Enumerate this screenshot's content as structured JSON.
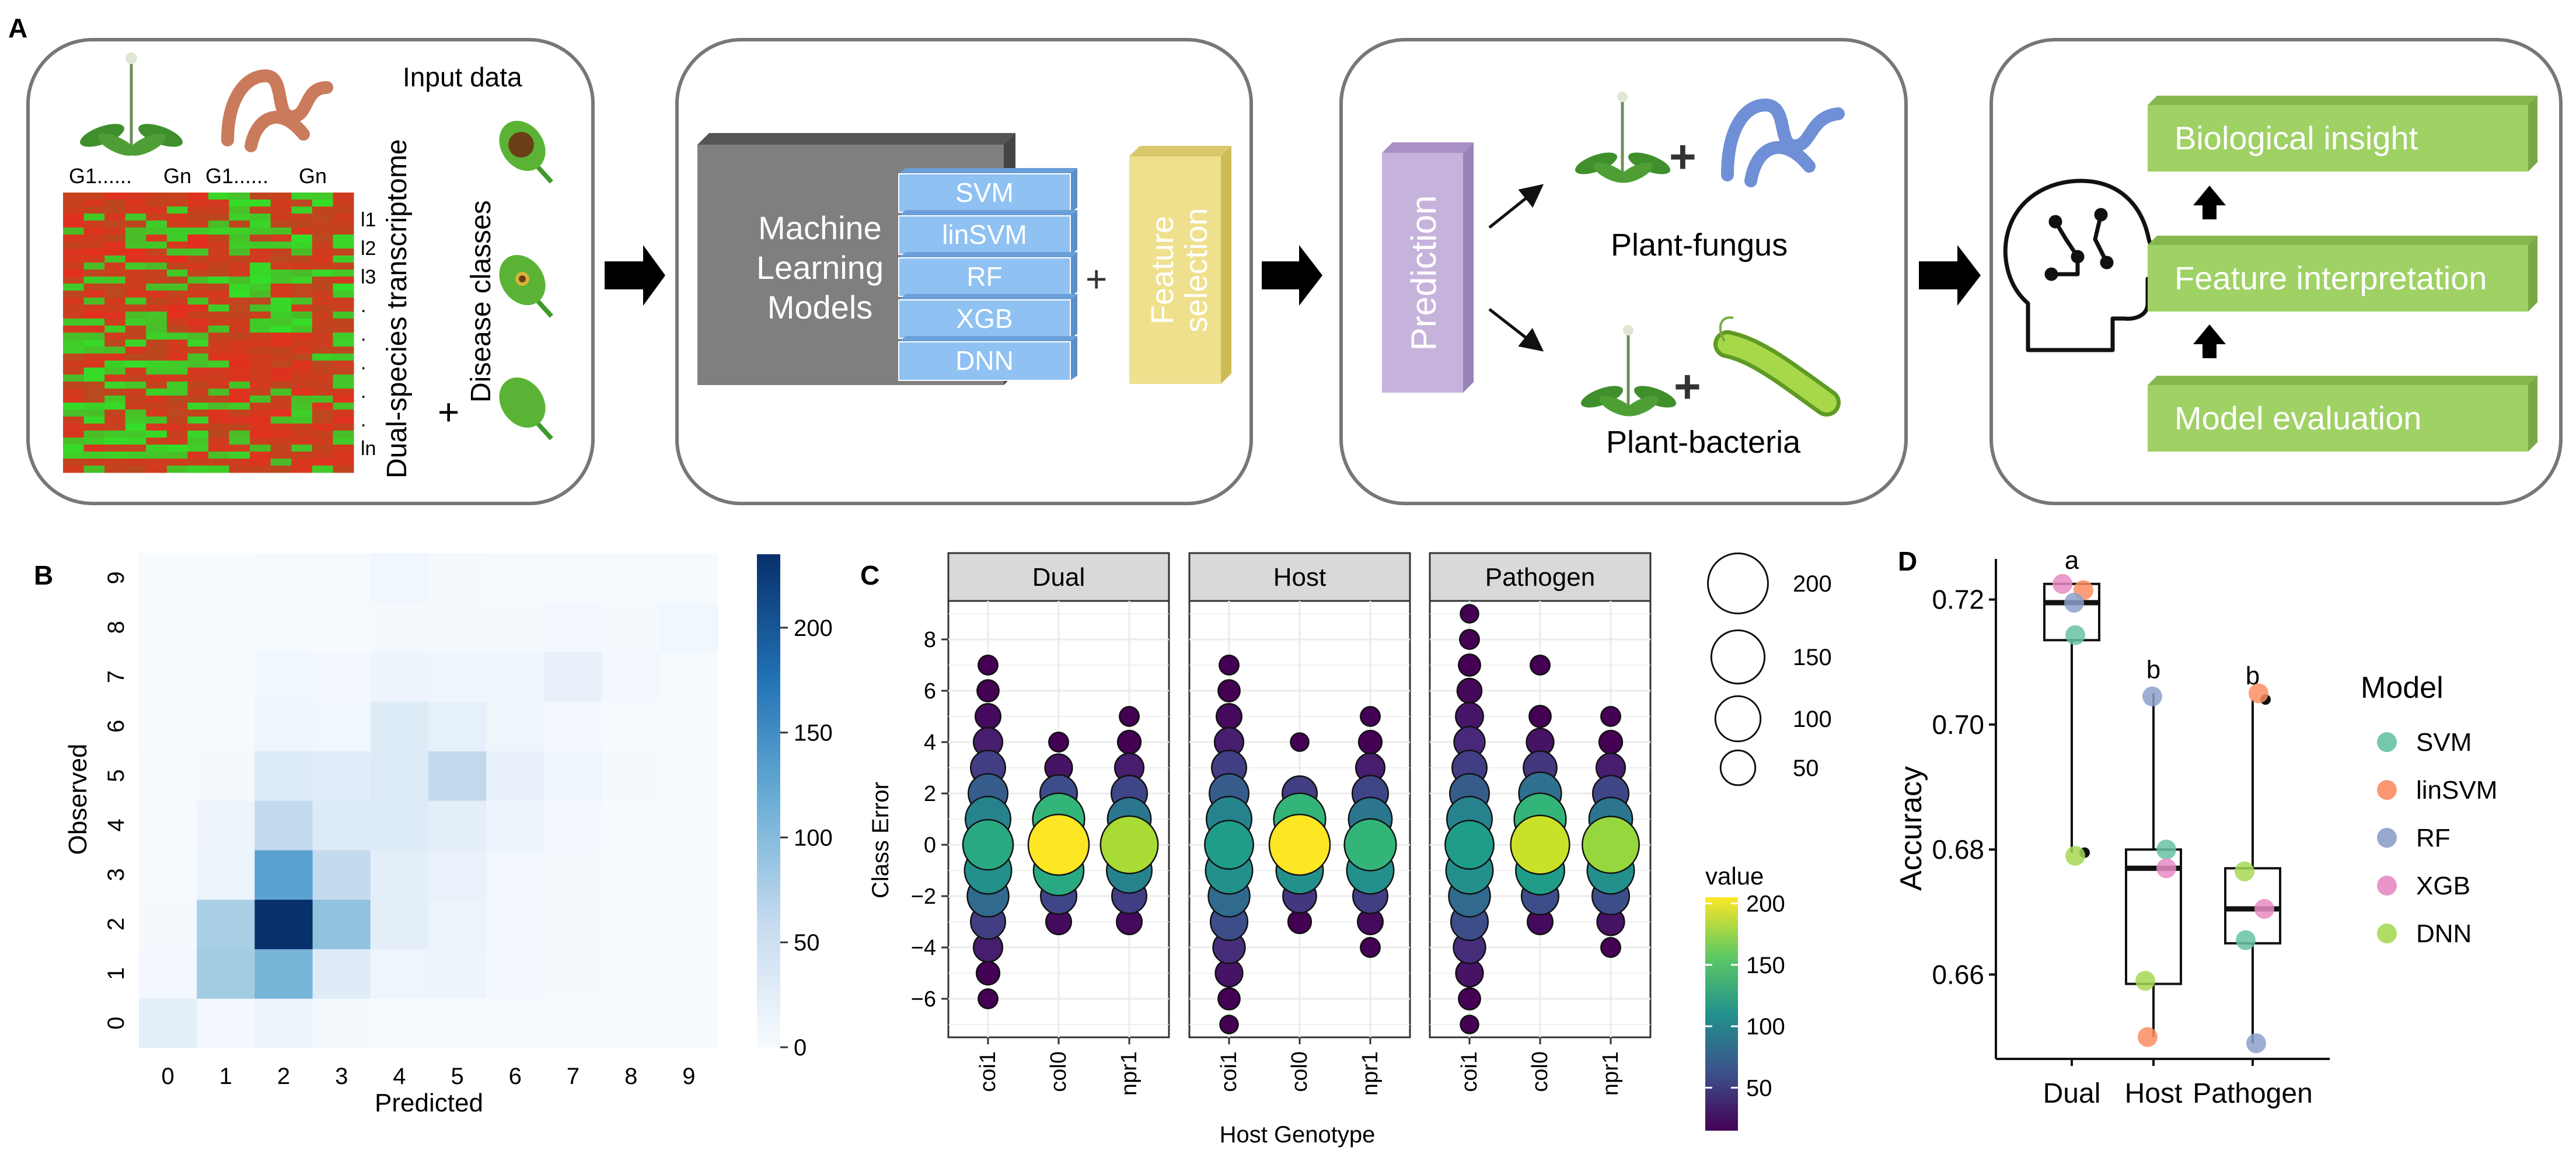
{
  "panel_letters": {
    "a": "A",
    "b": "B",
    "c": "C",
    "d": "D"
  },
  "panel_a": {
    "box1": {
      "input_data_label": "Input data",
      "gene_labels": [
        "G1......",
        "Gn",
        "G1......",
        "Gn"
      ],
      "row_labels": [
        "l1",
        "l2",
        "l3",
        ".",
        ".",
        ".",
        ".",
        ".",
        "ln"
      ],
      "dual_species_label": "Dual-species transcriptome",
      "disease_classes_label": "Disease classes",
      "plus": "+"
    },
    "box2": {
      "ml_label_lines": [
        "Machine",
        "Learning",
        "Models"
      ],
      "models": [
        "SVM",
        "linSVM",
        "RF",
        "XGB",
        "DNN"
      ],
      "plus": "+",
      "feature_selection_lines": [
        "Feature",
        "selection"
      ]
    },
    "box3": {
      "prediction_label": "Prediction",
      "plant_fungus_label": "Plant-fungus",
      "plant_bacteria_label": "Plant-bacteria",
      "plus": "+"
    },
    "box4": {
      "steps": [
        "Biological insight",
        "Feature interpretation",
        "Model evaluation"
      ]
    }
  },
  "chart_data": [
    {
      "panel": "B",
      "type": "heatmap",
      "xlabel": "Predicted",
      "ylabel": "Observed",
      "x_categories": [
        "0",
        "1",
        "2",
        "3",
        "4",
        "5",
        "6",
        "7",
        "8",
        "9"
      ],
      "y_categories": [
        "0",
        "1",
        "2",
        "3",
        "4",
        "5",
        "6",
        "7",
        "8",
        "9"
      ],
      "colorbar": {
        "ticks": [
          0,
          50,
          100,
          150,
          200
        ],
        "min": 0,
        "max": 235,
        "colors": [
          "#f7fbff",
          "#08306b"
        ]
      },
      "matrix_rows_observed_0_to_9": [
        [
          22,
          6,
          12,
          4,
          2,
          2,
          1,
          1,
          0,
          0
        ],
        [
          6,
          85,
          110,
          28,
          10,
          12,
          6,
          4,
          2,
          1
        ],
        [
          4,
          80,
          235,
          95,
          22,
          14,
          6,
          3,
          1,
          1
        ],
        [
          2,
          14,
          130,
          60,
          24,
          16,
          6,
          4,
          2,
          1
        ],
        [
          1,
          12,
          60,
          30,
          30,
          24,
          12,
          6,
          2,
          1
        ],
        [
          1,
          4,
          30,
          26,
          30,
          62,
          18,
          10,
          4,
          2
        ],
        [
          0,
          2,
          10,
          8,
          30,
          20,
          10,
          6,
          2,
          1
        ],
        [
          0,
          1,
          8,
          6,
          12,
          10,
          10,
          18,
          6,
          2
        ],
        [
          0,
          0,
          2,
          2,
          4,
          4,
          4,
          6,
          4,
          8
        ],
        [
          0,
          0,
          1,
          1,
          8,
          4,
          2,
          1,
          1,
          2
        ]
      ]
    },
    {
      "panel": "C",
      "type": "scatter",
      "xlabel": "Host Genotype",
      "ylabel": "Class Error",
      "facets": [
        "Dual",
        "Host",
        "Pathogen"
      ],
      "x_categories": [
        "coi1",
        "col0",
        "npr1"
      ],
      "y_ticks": [
        -6,
        -4,
        -2,
        0,
        2,
        4,
        6,
        8
      ],
      "ylim": [
        -7.5,
        9.5
      ],
      "size_legend": {
        "values": [
          200,
          150,
          100,
          50
        ]
      },
      "color_legend": {
        "title": "value",
        "ticks": [
          200,
          150,
          100,
          50
        ],
        "min": 15,
        "max": 205
      },
      "points": {
        "Dual": {
          "coi1": [
            [
              7,
              8
            ],
            [
              6,
              12
            ],
            [
              5,
              20
            ],
            [
              4,
              30
            ],
            [
              3,
              50
            ],
            [
              2,
              70
            ],
            [
              1,
              100
            ],
            [
              0,
              130
            ],
            [
              -1,
              110
            ],
            [
              -2,
              80
            ],
            [
              -3,
              50
            ],
            [
              -4,
              30
            ],
            [
              -5,
              15
            ],
            [
              -6,
              8
            ]
          ],
          "col0": [
            [
              4,
              8
            ],
            [
              3,
              25
            ],
            [
              2,
              60
            ],
            [
              1,
              140
            ],
            [
              0,
              205
            ],
            [
              -1,
              130
            ],
            [
              -2,
              55
            ],
            [
              -3,
              20
            ]
          ],
          "npr1": [
            [
              5,
              8
            ],
            [
              4,
              15
            ],
            [
              3,
              30
            ],
            [
              2,
              55
            ],
            [
              1,
              90
            ],
            [
              0,
              180
            ],
            [
              -1,
              100
            ],
            [
              -2,
              50
            ],
            [
              -3,
              20
            ]
          ]
        },
        "Host": {
          "coi1": [
            [
              7,
              8
            ],
            [
              6,
              12
            ],
            [
              5,
              20
            ],
            [
              4,
              30
            ],
            [
              3,
              50
            ],
            [
              2,
              70
            ],
            [
              1,
              100
            ],
            [
              0,
              120
            ],
            [
              -1,
              110
            ],
            [
              -2,
              80
            ],
            [
              -3,
              60
            ],
            [
              -4,
              40
            ],
            [
              -5,
              25
            ],
            [
              -6,
              12
            ],
            [
              -7,
              6
            ]
          ],
          "col0": [
            [
              4,
              6
            ],
            [
              2,
              50
            ],
            [
              1,
              140
            ],
            [
              0,
              205
            ],
            [
              -1,
              110
            ],
            [
              -2,
              45
            ],
            [
              -3,
              15
            ]
          ],
          "npr1": [
            [
              5,
              8
            ],
            [
              4,
              15
            ],
            [
              3,
              30
            ],
            [
              2,
              55
            ],
            [
              1,
              90
            ],
            [
              0,
              140
            ],
            [
              -1,
              110
            ],
            [
              -2,
              50
            ],
            [
              -3,
              20
            ],
            [
              -4,
              8
            ]
          ]
        },
        "Pathogen": {
          "coi1": [
            [
              9,
              6
            ],
            [
              8,
              8
            ],
            [
              7,
              12
            ],
            [
              6,
              18
            ],
            [
              5,
              26
            ],
            [
              4,
              36
            ],
            [
              3,
              50
            ],
            [
              2,
              70
            ],
            [
              1,
              100
            ],
            [
              0,
              120
            ],
            [
              -1,
              110
            ],
            [
              -2,
              80
            ],
            [
              -3,
              60
            ],
            [
              -4,
              40
            ],
            [
              -5,
              25
            ],
            [
              -6,
              12
            ],
            [
              -7,
              6
            ]
          ],
          "col0": [
            [
              7,
              8
            ],
            [
              5,
              12
            ],
            [
              4,
              25
            ],
            [
              3,
              45
            ],
            [
              2,
              85
            ],
            [
              1,
              140
            ],
            [
              0,
              190
            ],
            [
              -1,
              120
            ],
            [
              -2,
              60
            ],
            [
              -3,
              20
            ]
          ],
          "npr1": [
            [
              5,
              8
            ],
            [
              4,
              15
            ],
            [
              3,
              30
            ],
            [
              2,
              55
            ],
            [
              1,
              90
            ],
            [
              0,
              175
            ],
            [
              -1,
              110
            ],
            [
              -2,
              60
            ],
            [
              -3,
              25
            ],
            [
              -4,
              8
            ]
          ]
        }
      }
    },
    {
      "panel": "D",
      "type": "boxplot",
      "xlabel": "",
      "ylabel": "Accuracy",
      "categories": [
        "Dual",
        "Host",
        "Pathogen"
      ],
      "y_ticks": [
        0.66,
        0.68,
        0.7,
        0.72
      ],
      "ylim": [
        0.6465,
        0.7265
      ],
      "letters": [
        "a",
        "b",
        "b"
      ],
      "legend": {
        "title": "Model",
        "entries": [
          {
            "name": "SVM",
            "color": "#66c2a5"
          },
          {
            "name": "linSVM",
            "color": "#fc8d62"
          },
          {
            "name": "RF",
            "color": "#8da0cb"
          },
          {
            "name": "XGB",
            "color": "#e78ac3"
          },
          {
            "name": "DNN",
            "color": "#a6d854"
          }
        ]
      },
      "boxes": [
        {
          "min": 0.6795,
          "q1": 0.7135,
          "median": 0.7195,
          "q3": 0.7225,
          "max": 0.7225,
          "outliers": [
            0.6795
          ]
        },
        {
          "min": 0.65,
          "q1": 0.6585,
          "median": 0.677,
          "q3": 0.68,
          "max": 0.705,
          "outliers": []
        },
        {
          "min": 0.649,
          "q1": 0.665,
          "median": 0.6705,
          "q3": 0.677,
          "max": 0.704,
          "outliers": [
            0.704
          ]
        }
      ],
      "points": [
        {
          "group": "Dual",
          "model": "SVM",
          "value": 0.7143
        },
        {
          "group": "Dual",
          "model": "linSVM",
          "value": 0.7215
        },
        {
          "group": "Dual",
          "model": "RF",
          "value": 0.7195
        },
        {
          "group": "Dual",
          "model": "XGB",
          "value": 0.7225
        },
        {
          "group": "Dual",
          "model": "DNN",
          "value": 0.679
        },
        {
          "group": "Host",
          "model": "SVM",
          "value": 0.68
        },
        {
          "group": "Host",
          "model": "linSVM",
          "value": 0.65
        },
        {
          "group": "Host",
          "model": "RF",
          "value": 0.7045
        },
        {
          "group": "Host",
          "model": "XGB",
          "value": 0.677
        },
        {
          "group": "Host",
          "model": "DNN",
          "value": 0.659
        },
        {
          "group": "Pathogen",
          "model": "SVM",
          "value": 0.6655
        },
        {
          "group": "Pathogen",
          "model": "linSVM",
          "value": 0.705
        },
        {
          "group": "Pathogen",
          "model": "RF",
          "value": 0.649
        },
        {
          "group": "Pathogen",
          "model": "XGB",
          "value": 0.6705
        },
        {
          "group": "Pathogen",
          "model": "DNN",
          "value": 0.6765
        }
      ]
    }
  ]
}
